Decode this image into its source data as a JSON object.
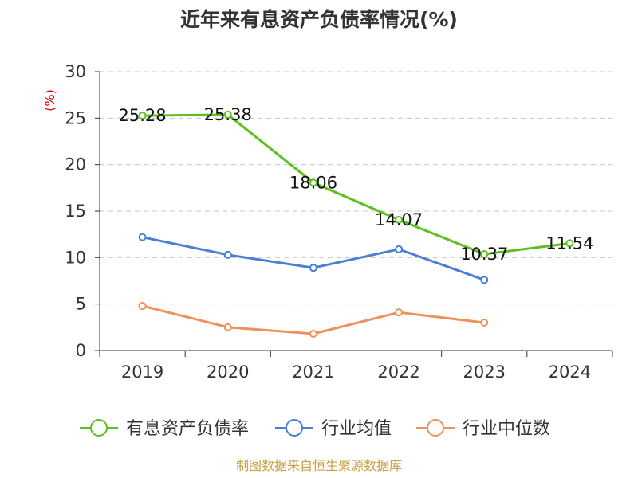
{
  "chart_data": {
    "type": "line",
    "title": "近年来有息资产负债率情况(%)",
    "ylabel": "(%)",
    "xlabel": "",
    "ylim": [
      0,
      30
    ],
    "yticks": [
      0,
      5,
      10,
      15,
      20,
      25,
      30
    ],
    "categories": [
      "2019",
      "2020",
      "2021",
      "2022",
      "2023",
      "2024"
    ],
    "series": [
      {
        "name": "有息资产负债率",
        "color": "#5cc020",
        "values": [
          25.28,
          25.38,
          18.06,
          14.07,
          10.37,
          11.54
        ],
        "labels": [
          "25.28",
          "25.38",
          "18.06",
          "14.07",
          "10.37",
          "11.54"
        ]
      },
      {
        "name": "行业均值",
        "color": "#4a7fd8",
        "values": [
          12.2,
          10.3,
          8.9,
          10.9,
          7.6,
          null
        ]
      },
      {
        "name": "行业中位数",
        "color": "#f0905a",
        "values": [
          4.8,
          2.5,
          1.8,
          4.1,
          3.0,
          null
        ]
      }
    ],
    "grid": true,
    "legend": "bottom"
  },
  "source": "制图数据来自恒生聚源数据库"
}
